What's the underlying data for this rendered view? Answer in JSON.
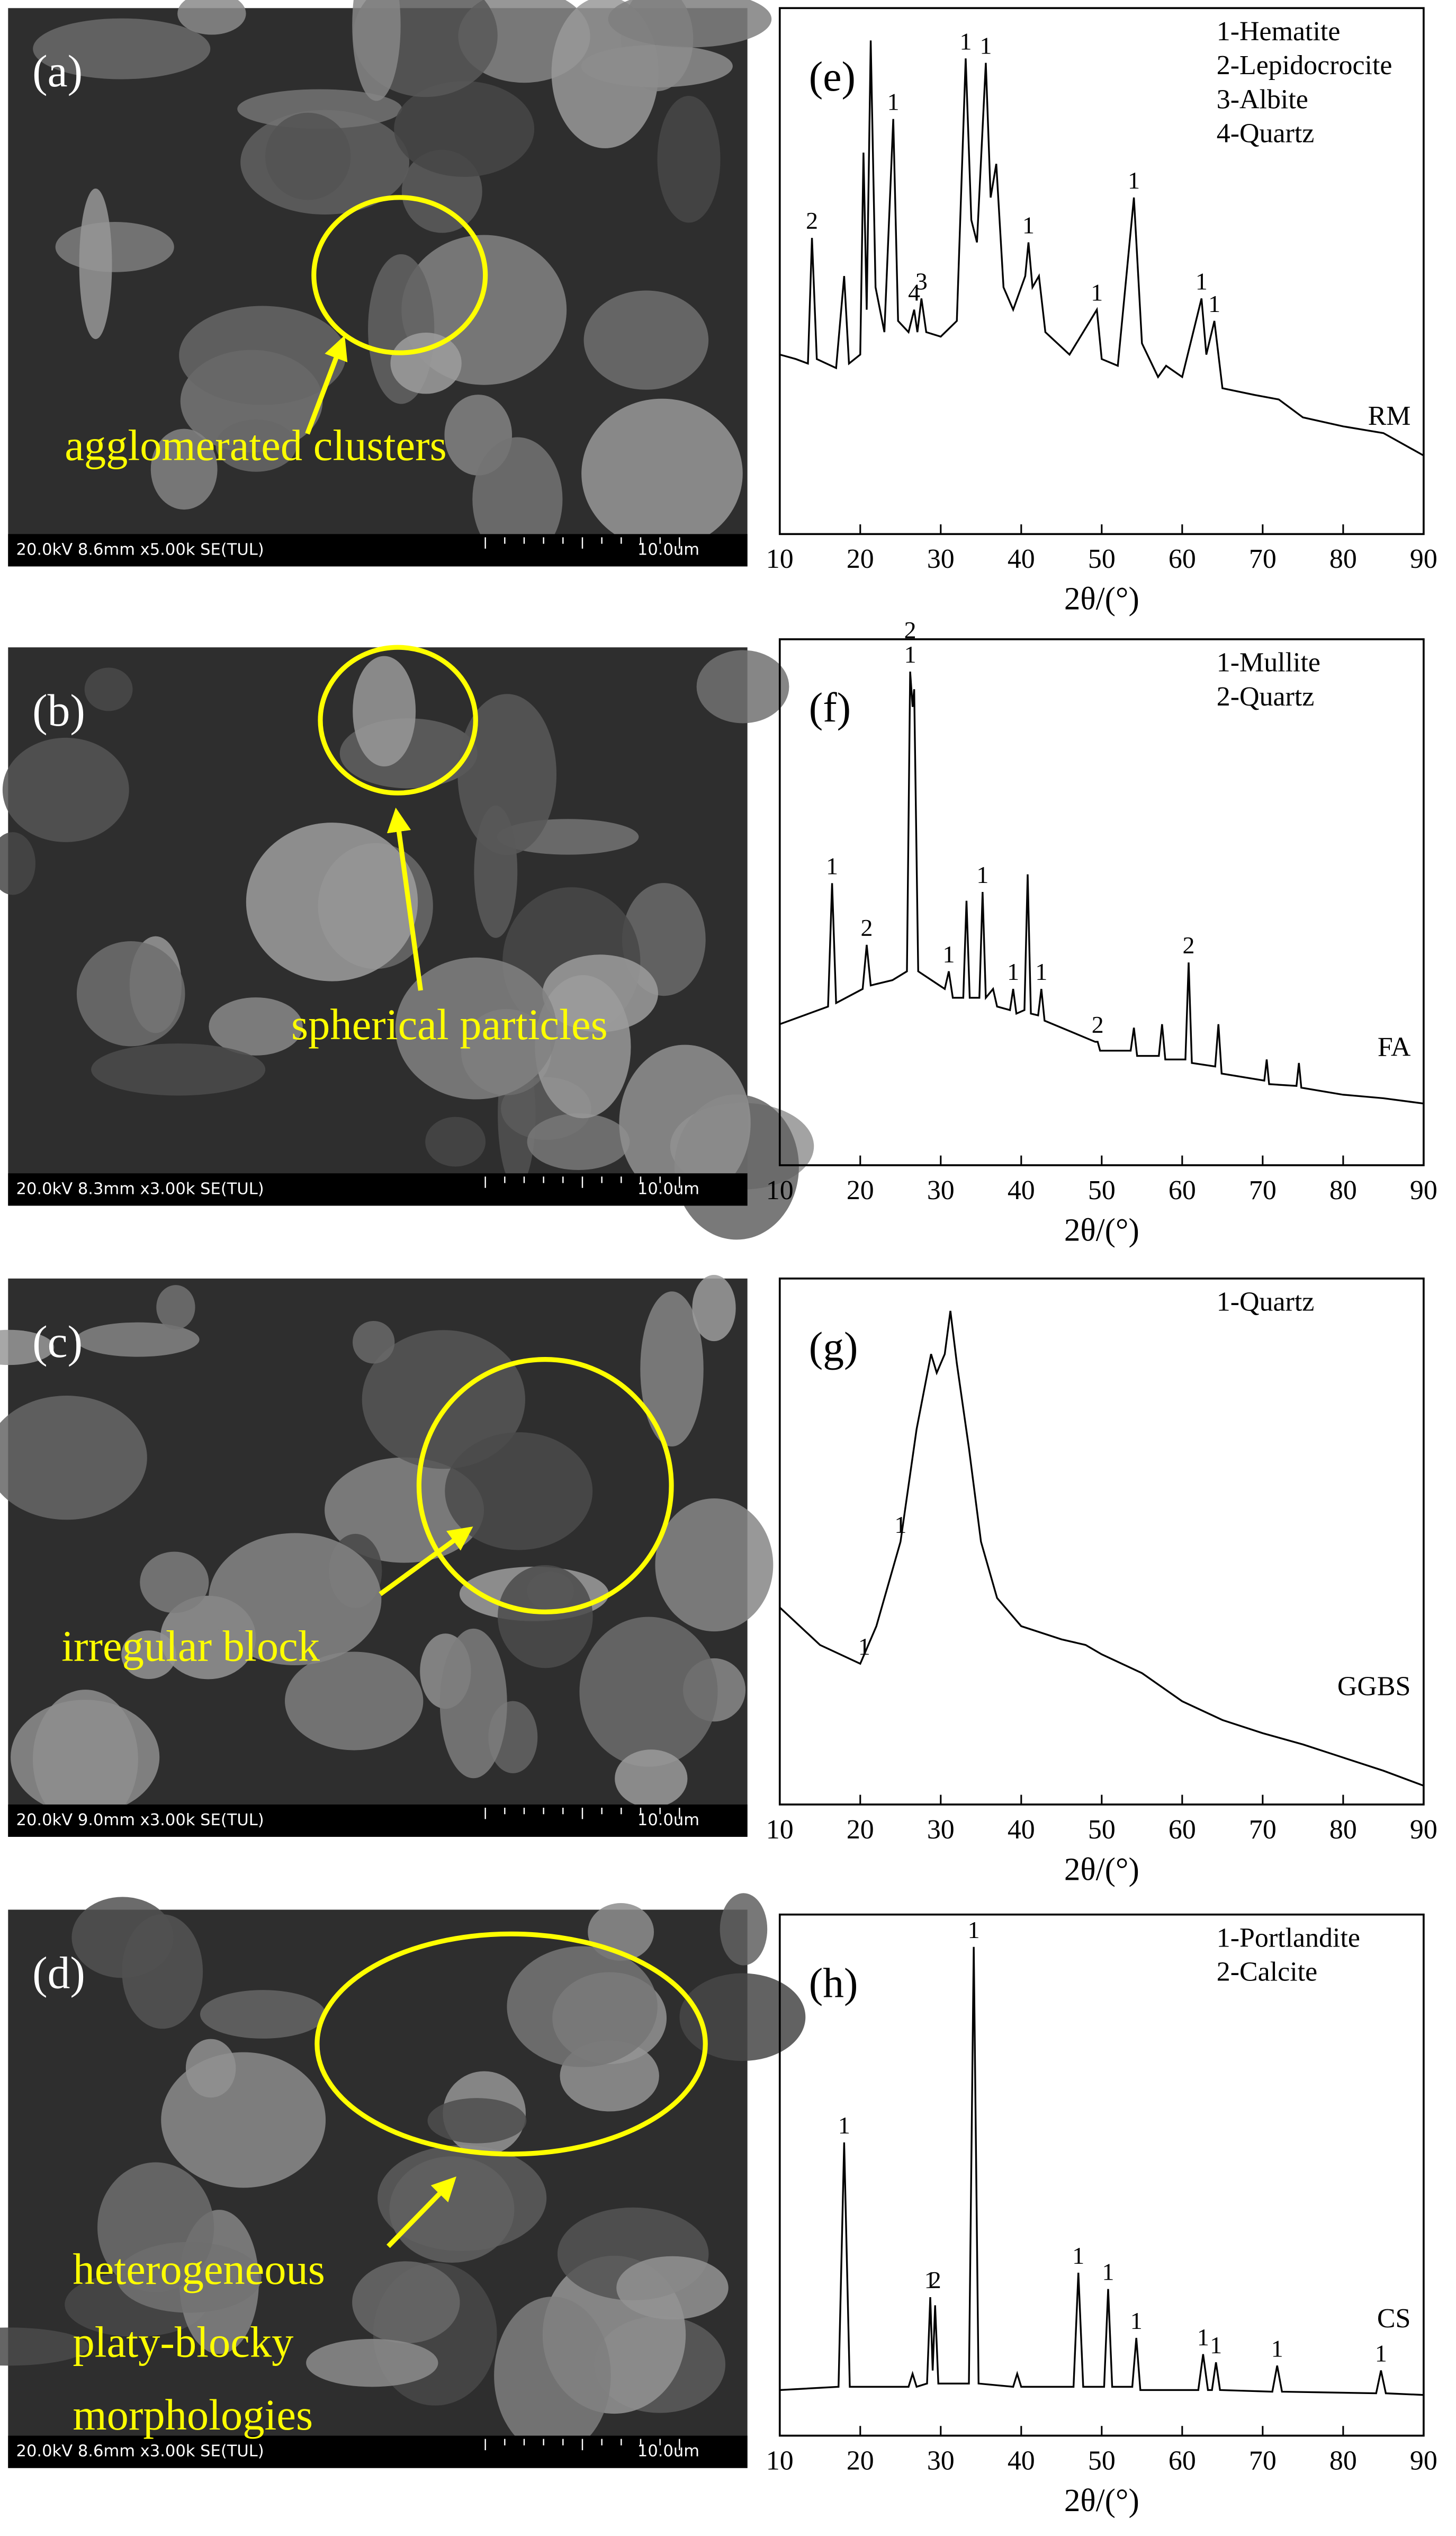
{
  "sem_panels": [
    {
      "label": "(a)",
      "annotation": [
        "agglomerated clusters"
      ],
      "info": "20.0kV 8.6mm x5.00k SE(TUL)",
      "scale": "10.0um"
    },
    {
      "label": "(b)",
      "annotation": [
        "spherical particles"
      ],
      "info": "20.0kV 8.3mm x3.00k SE(TUL)",
      "scale": "10.0um"
    },
    {
      "label": "(c)",
      "annotation": [
        "irregular block"
      ],
      "info": "20.0kV 9.0mm x3.00k SE(TUL)",
      "scale": "10.0um"
    },
    {
      "label": "(d)",
      "annotation": [
        "heterogeneous",
        "platy-blocky",
        "morphologies"
      ],
      "info": "20.0kV 8.6mm x3.00k SE(TUL)",
      "scale": "10.0um"
    }
  ],
  "chart_data": [
    {
      "type": "line",
      "panel": "(e)",
      "legend": [
        "1-Hematite",
        "2-Lepidocrocite",
        "3-Albite",
        "4-Quartz"
      ],
      "sample": "RM",
      "xlabel": "2θ/(°)",
      "color": "#000000",
      "xlim": [
        10,
        90
      ],
      "xticks": [
        10,
        20,
        30,
        40,
        50,
        60,
        70,
        80,
        90
      ],
      "x": [
        10,
        12,
        13.5,
        14,
        14.6,
        17,
        18,
        18.6,
        20,
        20.4,
        20.8,
        21.3,
        21.9,
        23,
        24.1,
        24.7,
        26,
        26.7,
        27.1,
        27.6,
        28.2,
        30,
        32,
        33.1,
        33.8,
        34.5,
        35.6,
        36.2,
        36.9,
        37.8,
        39,
        40.5,
        40.9,
        41.4,
        42.2,
        43,
        46,
        49.4,
        50,
        52,
        54,
        55,
        57,
        58,
        60,
        62.4,
        63,
        64,
        65,
        69,
        72,
        75,
        80,
        85,
        90
      ],
      "values": [
        80,
        78,
        76,
        132,
        78,
        74,
        115,
        76,
        80,
        170,
        100,
        220,
        110,
        90,
        185,
        95,
        90,
        100,
        90,
        105,
        90,
        88,
        95,
        212,
        140,
        130,
        210,
        150,
        165,
        110,
        100,
        115,
        130,
        110,
        115,
        90,
        80,
        100,
        78,
        75,
        150,
        85,
        70,
        75,
        70,
        105,
        80,
        95,
        65,
        62,
        60,
        52,
        48,
        45,
        35
      ],
      "peaks": [
        {
          "label": "2",
          "x": 14
        },
        {
          "label": "1",
          "x": 24.1
        },
        {
          "label": "4",
          "x": 26.7
        },
        {
          "label": "3",
          "x": 27.6
        },
        {
          "label": "1",
          "x": 33.1
        },
        {
          "label": "1",
          "x": 35.6
        },
        {
          "label": "1",
          "x": 40.9
        },
        {
          "label": "1",
          "x": 49.4
        },
        {
          "label": "1",
          "x": 54
        },
        {
          "label": "1",
          "x": 62.4
        },
        {
          "label": "1",
          "x": 64
        }
      ]
    },
    {
      "type": "line",
      "panel": "(f)",
      "legend": [
        "1-Mullite",
        "2-Quartz"
      ],
      "sample": "FA",
      "xlabel": "2θ/(°)",
      "color": "#000000",
      "xlim": [
        10,
        90
      ],
      "xticks": [
        10,
        20,
        30,
        40,
        50,
        60,
        70,
        80,
        90
      ],
      "x": [
        10,
        13,
        16,
        16.5,
        17,
        20.3,
        20.8,
        21.3,
        24,
        25.8,
        26.2,
        26.5,
        26.7,
        27.2,
        30.5,
        31,
        31.5,
        32.8,
        33.2,
        33.6,
        34.8,
        35.2,
        35.6,
        36.5,
        37,
        38.6,
        39,
        39.4,
        40.4,
        40.8,
        41.2,
        42.1,
        42.5,
        42.9,
        49.2,
        49.5,
        49.8,
        53.6,
        54,
        54.4,
        57.1,
        57.5,
        57.9,
        60.4,
        60.8,
        61.2,
        64.1,
        64.5,
        64.9,
        70.2,
        70.5,
        70.8,
        74.2,
        74.5,
        74.8,
        80,
        85,
        90
      ],
      "values": [
        80,
        85,
        90,
        160,
        92,
        100,
        125,
        102,
        105,
        110,
        280,
        260,
        270,
        110,
        100,
        110,
        95,
        95,
        150,
        95,
        95,
        155,
        95,
        100,
        90,
        88,
        100,
        86,
        88,
        165,
        86,
        85,
        100,
        82,
        70,
        70,
        65,
        65,
        78,
        62,
        62,
        80,
        60,
        60,
        115,
        58,
        56,
        80,
        52,
        48,
        60,
        46,
        45,
        58,
        44,
        40,
        38,
        35
      ],
      "peaks": [
        {
          "label": "1",
          "x": 16.5
        },
        {
          "label": "2",
          "x": 20.8
        },
        {
          "label": "1",
          "x": 26.2
        },
        {
          "label": "2",
          "x": 26.2
        },
        {
          "label": "1",
          "x": 31
        },
        {
          "label": "1",
          "x": 35.2
        },
        {
          "label": "1",
          "x": 39
        },
        {
          "label": "1",
          "x": 42.5
        },
        {
          "label": "2",
          "x": 49.5
        },
        {
          "label": "2",
          "x": 60.8
        }
      ]
    },
    {
      "type": "line",
      "panel": "(g)",
      "legend": [
        "1-Quartz"
      ],
      "sample": "GGBS",
      "xlabel": "2θ/(°)",
      "color": "#000000",
      "xlim": [
        10,
        90
      ],
      "xticks": [
        10,
        20,
        30,
        40,
        50,
        60,
        70,
        80,
        90
      ],
      "x": [
        10,
        15,
        20,
        22,
        25,
        27,
        28.8,
        29.5,
        30.5,
        31.2,
        32,
        33.5,
        35,
        37,
        40,
        45,
        48,
        50,
        55,
        60,
        65,
        70,
        75,
        80,
        85,
        90
      ],
      "values": [
        105,
        85,
        75,
        95,
        140,
        200,
        240,
        230,
        240,
        263,
        235,
        190,
        140,
        110,
        95,
        88,
        85,
        80,
        70,
        55,
        45,
        38,
        32,
        25,
        18,
        10
      ],
      "peaks": [
        {
          "label": "1",
          "x": 20.5
        },
        {
          "label": "1",
          "x": 25
        }
      ]
    },
    {
      "type": "line",
      "panel": "(h)",
      "legend": [
        "1-Portlandite",
        "2-Calcite"
      ],
      "sample": "CS",
      "xlabel": "2θ/(°)",
      "color": "#000000",
      "xlim": [
        10,
        90
      ],
      "xticks": [
        10,
        20,
        30,
        40,
        50,
        60,
        70,
        80,
        90
      ],
      "x": [
        10,
        17.3,
        18,
        18.7,
        26,
        26.5,
        27,
        28.3,
        28.7,
        29,
        29.3,
        29.7,
        33.5,
        34.1,
        34.7,
        39,
        39.5,
        40,
        46.5,
        47.1,
        47.7,
        50.3,
        50.8,
        51.3,
        53.8,
        54.3,
        54.8,
        62,
        62.6,
        63.2,
        63.7,
        64.2,
        64.7,
        71.2,
        71.8,
        72.4,
        84.1,
        84.7,
        85.3,
        90
      ],
      "values": [
        28,
        30,
        180,
        30,
        30,
        38,
        30,
        32,
        85,
        40,
        80,
        32,
        32,
        300,
        32,
        30,
        38,
        30,
        30,
        100,
        30,
        30,
        90,
        30,
        30,
        60,
        28,
        28,
        50,
        28,
        28,
        45,
        28,
        27,
        43,
        27,
        26,
        40,
        26,
        25
      ],
      "peaks": [
        {
          "label": "1",
          "x": 18
        },
        {
          "label": "1",
          "x": 28.7
        },
        {
          "label": "2",
          "x": 29.3
        },
        {
          "label": "1",
          "x": 34.1
        },
        {
          "label": "1",
          "x": 47.1
        },
        {
          "label": "1",
          "x": 50.8
        },
        {
          "label": "1",
          "x": 54.3
        },
        {
          "label": "1",
          "x": 62.6
        },
        {
          "label": "1",
          "x": 64.2
        },
        {
          "label": "1",
          "x": 71.8
        },
        {
          "label": "1",
          "x": 84.7
        }
      ]
    }
  ]
}
